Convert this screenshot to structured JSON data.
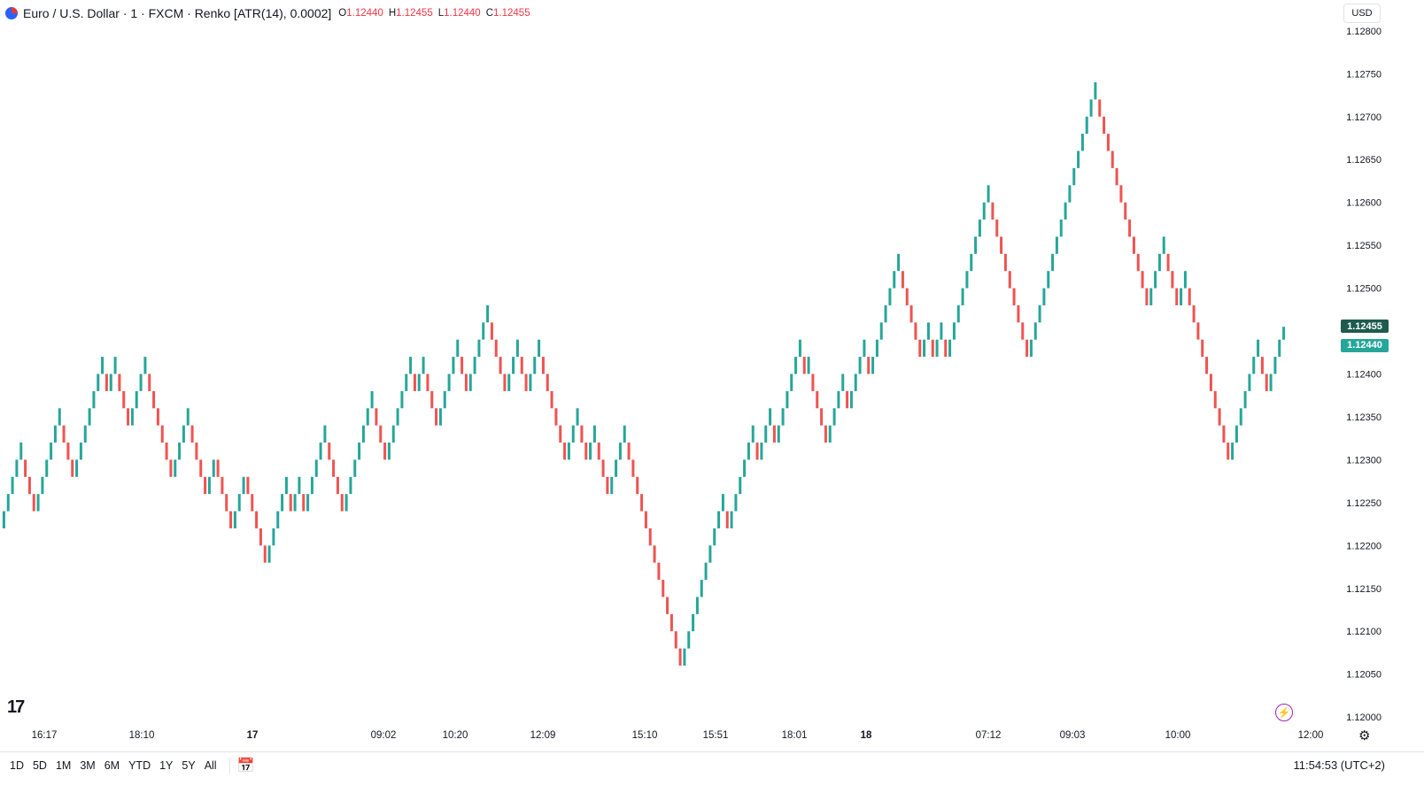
{
  "header": {
    "symbol": "Euro / U.S. Dollar · 1 · FXCM · Renko [ATR(14), 0.0002]",
    "o_label": "O",
    "o_value": "1.12440",
    "h_label": "H",
    "h_value": "1.12455",
    "l_label": "L",
    "l_value": "1.12440",
    "c_label": "C",
    "c_value": "1.12455"
  },
  "currency_button": "USD",
  "price_tags": {
    "upper": "1.12455",
    "lower": "1.12440"
  },
  "logo": "17",
  "bottom_bar": {
    "ranges": [
      "1D",
      "5D",
      "1M",
      "3M",
      "6M",
      "YTD",
      "1Y",
      "5Y",
      "All"
    ],
    "clock": "11:54:53 (UTC+2)"
  },
  "icons": {
    "flag": "eur-usd-flag-icon",
    "logo": "tradingview-logo",
    "flash": "lightning-icon",
    "settings": "gear-icon",
    "calendar": "calendar-goto-icon"
  },
  "colors": {
    "up": "#26a69a",
    "down": "#ef5350",
    "ohlc_values": "#f23645",
    "tag_upper": "#1e5b4f",
    "tag_lower": "#26a69a"
  },
  "chart_data": {
    "type": "renko",
    "box_size": 0.0002,
    "y_axis": {
      "ticks": [
        "1.12800",
        "1.12750",
        "1.12700",
        "1.12650",
        "1.12600",
        "1.12550",
        "1.12500",
        "1.12400",
        "1.12350",
        "1.12300",
        "1.12250",
        "1.12200",
        "1.12150",
        "1.12100",
        "1.12050",
        "1.12000"
      ],
      "range": [
        1.11995,
        1.12805
      ]
    },
    "x_axis": {
      "ticks": [
        "16:17",
        "18:10",
        "17",
        "09:02",
        "10:20",
        "12:09",
        "15:10",
        "15:51",
        "18:01",
        "18",
        "07:12",
        "09:03",
        "10:00",
        "12:00"
      ]
    },
    "bricks": [
      [
        1.1222,
        1.1224
      ],
      [
        1.1224,
        1.1226
      ],
      [
        1.1226,
        1.1228
      ],
      [
        1.1228,
        1.123
      ],
      [
        1.123,
        1.1232
      ],
      [
        1.123,
        1.1228
      ],
      [
        1.1228,
        1.1226
      ],
      [
        1.1226,
        1.1224
      ],
      [
        1.1224,
        1.1226
      ],
      [
        1.1226,
        1.1228
      ],
      [
        1.1228,
        1.123
      ],
      [
        1.123,
        1.1232
      ],
      [
        1.1232,
        1.1234
      ],
      [
        1.1234,
        1.1236
      ],
      [
        1.1234,
        1.1232
      ],
      [
        1.1232,
        1.123
      ],
      [
        1.123,
        1.1228
      ],
      [
        1.1228,
        1.123
      ],
      [
        1.123,
        1.1232
      ],
      [
        1.1232,
        1.1234
      ],
      [
        1.1234,
        1.1236
      ],
      [
        1.1236,
        1.1238
      ],
      [
        1.1238,
        1.124
      ],
      [
        1.124,
        1.1242
      ],
      [
        1.124,
        1.1238
      ],
      [
        1.1238,
        1.124
      ],
      [
        1.124,
        1.1242
      ],
      [
        1.124,
        1.1238
      ],
      [
        1.1238,
        1.1236
      ],
      [
        1.1236,
        1.1234
      ],
      [
        1.1234,
        1.1236
      ],
      [
        1.1236,
        1.1238
      ],
      [
        1.1238,
        1.124
      ],
      [
        1.124,
        1.1242
      ],
      [
        1.124,
        1.1238
      ],
      [
        1.1238,
        1.1236
      ],
      [
        1.1236,
        1.1234
      ],
      [
        1.1234,
        1.1232
      ],
      [
        1.1232,
        1.123
      ],
      [
        1.123,
        1.1228
      ],
      [
        1.1228,
        1.123
      ],
      [
        1.123,
        1.1232
      ],
      [
        1.1232,
        1.1234
      ],
      [
        1.1234,
        1.1236
      ],
      [
        1.1234,
        1.1232
      ],
      [
        1.1232,
        1.123
      ],
      [
        1.123,
        1.1228
      ],
      [
        1.1228,
        1.1226
      ],
      [
        1.1226,
        1.1228
      ],
      [
        1.1228,
        1.123
      ],
      [
        1.123,
        1.1228
      ],
      [
        1.1228,
        1.1226
      ],
      [
        1.1226,
        1.1224
      ],
      [
        1.1224,
        1.1222
      ],
      [
        1.1222,
        1.1224
      ],
      [
        1.1224,
        1.1226
      ],
      [
        1.1226,
        1.1228
      ],
      [
        1.1228,
        1.1226
      ],
      [
        1.1226,
        1.1224
      ],
      [
        1.1224,
        1.1222
      ],
      [
        1.1222,
        1.122
      ],
      [
        1.122,
        1.1218
      ],
      [
        1.1218,
        1.122
      ],
      [
        1.122,
        1.1222
      ],
      [
        1.1222,
        1.1224
      ],
      [
        1.1224,
        1.1226
      ],
      [
        1.1226,
        1.1228
      ],
      [
        1.1226,
        1.1224
      ],
      [
        1.1224,
        1.1226
      ],
      [
        1.1226,
        1.1228
      ],
      [
        1.1226,
        1.1224
      ],
      [
        1.1224,
        1.1226
      ],
      [
        1.1226,
        1.1228
      ],
      [
        1.1228,
        1.123
      ],
      [
        1.123,
        1.1232
      ],
      [
        1.1232,
        1.1234
      ],
      [
        1.1232,
        1.123
      ],
      [
        1.123,
        1.1228
      ],
      [
        1.1228,
        1.1226
      ],
      [
        1.1226,
        1.1224
      ],
      [
        1.1224,
        1.1226
      ],
      [
        1.1226,
        1.1228
      ],
      [
        1.1228,
        1.123
      ],
      [
        1.123,
        1.1232
      ],
      [
        1.1232,
        1.1234
      ],
      [
        1.1234,
        1.1236
      ],
      [
        1.1236,
        1.1238
      ],
      [
        1.1236,
        1.1234
      ],
      [
        1.1234,
        1.1232
      ],
      [
        1.1232,
        1.123
      ],
      [
        1.123,
        1.1232
      ],
      [
        1.1232,
        1.1234
      ],
      [
        1.1234,
        1.1236
      ],
      [
        1.1236,
        1.1238
      ],
      [
        1.1238,
        1.124
      ],
      [
        1.124,
        1.1242
      ],
      [
        1.124,
        1.1238
      ],
      [
        1.1238,
        1.124
      ],
      [
        1.124,
        1.1242
      ],
      [
        1.124,
        1.1238
      ],
      [
        1.1238,
        1.1236
      ],
      [
        1.1236,
        1.1234
      ],
      [
        1.1234,
        1.1236
      ],
      [
        1.1236,
        1.1238
      ],
      [
        1.1238,
        1.124
      ],
      [
        1.124,
        1.1242
      ],
      [
        1.1242,
        1.1244
      ],
      [
        1.1242,
        1.124
      ],
      [
        1.124,
        1.1238
      ],
      [
        1.1238,
        1.124
      ],
      [
        1.124,
        1.1242
      ],
      [
        1.1242,
        1.1244
      ],
      [
        1.1244,
        1.1246
      ],
      [
        1.1246,
        1.1248
      ],
      [
        1.1246,
        1.1244
      ],
      [
        1.1244,
        1.1242
      ],
      [
        1.1242,
        1.124
      ],
      [
        1.124,
        1.1238
      ],
      [
        1.1238,
        1.124
      ],
      [
        1.124,
        1.1242
      ],
      [
        1.1242,
        1.1244
      ],
      [
        1.1242,
        1.124
      ],
      [
        1.124,
        1.1238
      ],
      [
        1.1238,
        1.124
      ],
      [
        1.124,
        1.1242
      ],
      [
        1.1242,
        1.1244
      ],
      [
        1.1242,
        1.124
      ],
      [
        1.124,
        1.1238
      ],
      [
        1.1238,
        1.1236
      ],
      [
        1.1236,
        1.1234
      ],
      [
        1.1234,
        1.1232
      ],
      [
        1.1232,
        1.123
      ],
      [
        1.123,
        1.1232
      ],
      [
        1.1232,
        1.1234
      ],
      [
        1.1234,
        1.1236
      ],
      [
        1.1234,
        1.1232
      ],
      [
        1.1232,
        1.123
      ],
      [
        1.123,
        1.1232
      ],
      [
        1.1232,
        1.1234
      ],
      [
        1.1232,
        1.123
      ],
      [
        1.123,
        1.1228
      ],
      [
        1.1228,
        1.1226
      ],
      [
        1.1226,
        1.1228
      ],
      [
        1.1228,
        1.123
      ],
      [
        1.123,
        1.1232
      ],
      [
        1.1232,
        1.1234
      ],
      [
        1.1232,
        1.123
      ],
      [
        1.123,
        1.1228
      ],
      [
        1.1228,
        1.1226
      ],
      [
        1.1226,
        1.1224
      ],
      [
        1.1224,
        1.1222
      ],
      [
        1.1222,
        1.122
      ],
      [
        1.122,
        1.1218
      ],
      [
        1.1218,
        1.1216
      ],
      [
        1.1216,
        1.1214
      ],
      [
        1.1214,
        1.1212
      ],
      [
        1.1212,
        1.121
      ],
      [
        1.121,
        1.1208
      ],
      [
        1.1208,
        1.1206
      ],
      [
        1.1206,
        1.1208
      ],
      [
        1.1208,
        1.121
      ],
      [
        1.121,
        1.1212
      ],
      [
        1.1212,
        1.1214
      ],
      [
        1.1214,
        1.1216
      ],
      [
        1.1216,
        1.1218
      ],
      [
        1.1218,
        1.122
      ],
      [
        1.122,
        1.1222
      ],
      [
        1.1222,
        1.1224
      ],
      [
        1.1224,
        1.1226
      ],
      [
        1.1224,
        1.1222
      ],
      [
        1.1222,
        1.1224
      ],
      [
        1.1224,
        1.1226
      ],
      [
        1.1226,
        1.1228
      ],
      [
        1.1228,
        1.123
      ],
      [
        1.123,
        1.1232
      ],
      [
        1.1232,
        1.1234
      ],
      [
        1.1232,
        1.123
      ],
      [
        1.123,
        1.1232
      ],
      [
        1.1232,
        1.1234
      ],
      [
        1.1234,
        1.1236
      ],
      [
        1.1234,
        1.1232
      ],
      [
        1.1232,
        1.1234
      ],
      [
        1.1234,
        1.1236
      ],
      [
        1.1236,
        1.1238
      ],
      [
        1.1238,
        1.124
      ],
      [
        1.124,
        1.1242
      ],
      [
        1.1242,
        1.1244
      ],
      [
        1.1242,
        1.124
      ],
      [
        1.124,
        1.1242
      ],
      [
        1.124,
        1.1238
      ],
      [
        1.1238,
        1.1236
      ],
      [
        1.1236,
        1.1234
      ],
      [
        1.1234,
        1.1232
      ],
      [
        1.1232,
        1.1234
      ],
      [
        1.1234,
        1.1236
      ],
      [
        1.1236,
        1.1238
      ],
      [
        1.1238,
        1.124
      ],
      [
        1.1238,
        1.1236
      ],
      [
        1.1236,
        1.1238
      ],
      [
        1.1238,
        1.124
      ],
      [
        1.124,
        1.1242
      ],
      [
        1.1242,
        1.1244
      ],
      [
        1.1242,
        1.124
      ],
      [
        1.124,
        1.1242
      ],
      [
        1.1242,
        1.1244
      ],
      [
        1.1244,
        1.1246
      ],
      [
        1.1246,
        1.1248
      ],
      [
        1.1248,
        1.125
      ],
      [
        1.125,
        1.1252
      ],
      [
        1.1252,
        1.1254
      ],
      [
        1.1252,
        1.125
      ],
      [
        1.125,
        1.1248
      ],
      [
        1.1248,
        1.1246
      ],
      [
        1.1246,
        1.1244
      ],
      [
        1.1244,
        1.1242
      ],
      [
        1.1242,
        1.1244
      ],
      [
        1.1244,
        1.1246
      ],
      [
        1.1244,
        1.1242
      ],
      [
        1.1242,
        1.1244
      ],
      [
        1.1244,
        1.1246
      ],
      [
        1.1244,
        1.1242
      ],
      [
        1.1242,
        1.1244
      ],
      [
        1.1244,
        1.1246
      ],
      [
        1.1246,
        1.1248
      ],
      [
        1.1248,
        1.125
      ],
      [
        1.125,
        1.1252
      ],
      [
        1.1252,
        1.1254
      ],
      [
        1.1254,
        1.1256
      ],
      [
        1.1256,
        1.1258
      ],
      [
        1.1258,
        1.126
      ],
      [
        1.126,
        1.1262
      ],
      [
        1.126,
        1.1258
      ],
      [
        1.1258,
        1.1256
      ],
      [
        1.1256,
        1.1254
      ],
      [
        1.1254,
        1.1252
      ],
      [
        1.1252,
        1.125
      ],
      [
        1.125,
        1.1248
      ],
      [
        1.1248,
        1.1246
      ],
      [
        1.1246,
        1.1244
      ],
      [
        1.1244,
        1.1242
      ],
      [
        1.1242,
        1.1244
      ],
      [
        1.1244,
        1.1246
      ],
      [
        1.1246,
        1.1248
      ],
      [
        1.1248,
        1.125
      ],
      [
        1.125,
        1.1252
      ],
      [
        1.1252,
        1.1254
      ],
      [
        1.1254,
        1.1256
      ],
      [
        1.1256,
        1.1258
      ],
      [
        1.1258,
        1.126
      ],
      [
        1.126,
        1.1262
      ],
      [
        1.1262,
        1.1264
      ],
      [
        1.1264,
        1.1266
      ],
      [
        1.1266,
        1.1268
      ],
      [
        1.1268,
        1.127
      ],
      [
        1.127,
        1.1272
      ],
      [
        1.1272,
        1.1274
      ],
      [
        1.1272,
        1.127
      ],
      [
        1.127,
        1.1268
      ],
      [
        1.1268,
        1.1266
      ],
      [
        1.1266,
        1.1264
      ],
      [
        1.1264,
        1.1262
      ],
      [
        1.1262,
        1.126
      ],
      [
        1.126,
        1.1258
      ],
      [
        1.1258,
        1.1256
      ],
      [
        1.1256,
        1.1254
      ],
      [
        1.1254,
        1.1252
      ],
      [
        1.1252,
        1.125
      ],
      [
        1.125,
        1.1248
      ],
      [
        1.1248,
        1.125
      ],
      [
        1.125,
        1.1252
      ],
      [
        1.1252,
        1.1254
      ],
      [
        1.1254,
        1.1256
      ],
      [
        1.1254,
        1.1252
      ],
      [
        1.1252,
        1.125
      ],
      [
        1.125,
        1.1248
      ],
      [
        1.1248,
        1.125
      ],
      [
        1.125,
        1.1252
      ],
      [
        1.125,
        1.1248
      ],
      [
        1.1248,
        1.1246
      ],
      [
        1.1246,
        1.1244
      ],
      [
        1.1244,
        1.1242
      ],
      [
        1.1242,
        1.124
      ],
      [
        1.124,
        1.1238
      ],
      [
        1.1238,
        1.1236
      ],
      [
        1.1236,
        1.1234
      ],
      [
        1.1234,
        1.1232
      ],
      [
        1.1232,
        1.123
      ],
      [
        1.123,
        1.1232
      ],
      [
        1.1232,
        1.1234
      ],
      [
        1.1234,
        1.1236
      ],
      [
        1.1236,
        1.1238
      ],
      [
        1.1238,
        1.124
      ],
      [
        1.124,
        1.1242
      ],
      [
        1.1242,
        1.1244
      ],
      [
        1.1242,
        1.124
      ],
      [
        1.124,
        1.1238
      ],
      [
        1.1238,
        1.124
      ],
      [
        1.124,
        1.1242
      ],
      [
        1.1242,
        1.1244
      ],
      [
        1.1244,
        1.12455
      ]
    ]
  }
}
